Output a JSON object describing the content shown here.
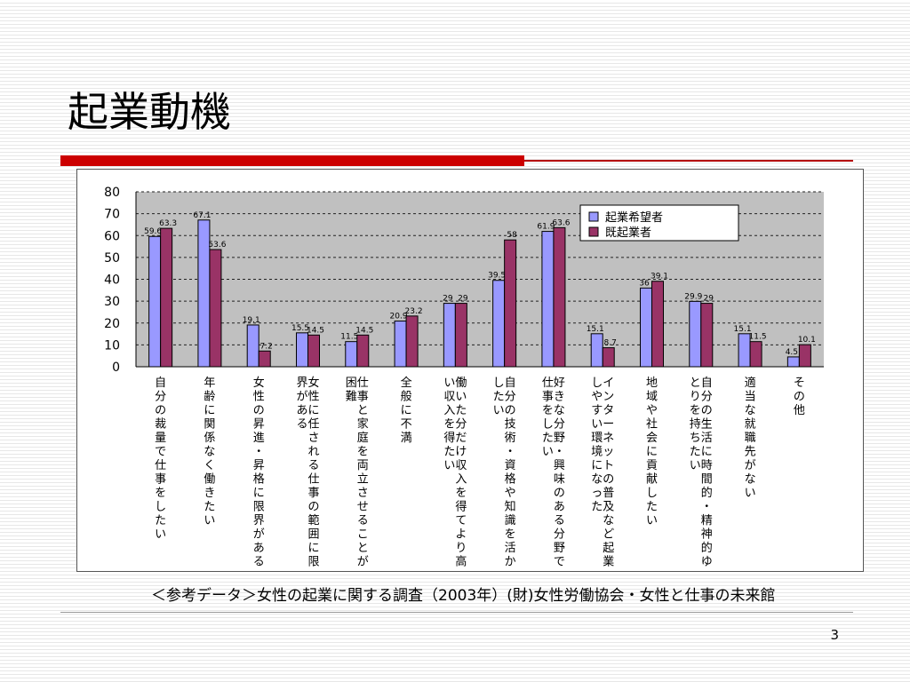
{
  "slide": {
    "title": "起業動機",
    "source_note": "＜参考データ＞女性の起業に関する調査（2003年）(財)女性労働協会・女性と仕事の未来館",
    "page_number": "3"
  },
  "colors": {
    "series1": "#9999ff",
    "series2": "#993366",
    "plot_bg": "#c0c0c0",
    "accent": "#cc0000"
  },
  "chart_data": {
    "type": "bar",
    "title": "",
    "xlabel": "",
    "ylabel": "",
    "ylim": [
      0,
      80
    ],
    "yticks": [
      0,
      10,
      20,
      30,
      40,
      50,
      60,
      70,
      80
    ],
    "grid": true,
    "legend": "top-right",
    "categories": [
      "自分の裁量で仕事をしたい",
      "年齢に関係なく働きたい",
      "女性の昇進・昇格に限界がある",
      "女性に任される仕事の範囲に限界がある",
      "仕事と家庭を両立させることが困難",
      "全般に不満",
      "働いた分だけ収入を得てより高い収入を得たい",
      "自分の技術・資格や知識を活かしたい",
      "好きな分野・興味のある分野で仕事をしたい",
      "インターネットの普及など起業しやすい環境になった",
      "地域や社会に貢献したい",
      "自分の生活に時間的・精神的ゆとりを持ちたい",
      "適当な就職先がない",
      "その他"
    ],
    "series": [
      {
        "name": "起業希望者",
        "values": [
          59.6,
          67.1,
          19.1,
          15.5,
          11.5,
          20.9,
          29.0,
          39.5,
          61.9,
          15.1,
          36.0,
          29.9,
          15.1,
          4.5
        ],
        "labels": [
          "59.6",
          "67.1",
          "19.1",
          "15.5",
          "11.5",
          "20.9",
          "29",
          "39.5",
          "61.9",
          "15.1",
          "36",
          "29.9",
          "15.1",
          "4.5"
        ]
      },
      {
        "name": "既起業者",
        "values": [
          63.3,
          53.6,
          7.2,
          14.5,
          14.5,
          23.2,
          29.0,
          58.0,
          63.6,
          8.7,
          39.1,
          29.0,
          11.5,
          10.1
        ],
        "labels": [
          "63.3",
          "53.6",
          "7.2",
          "14.5",
          "14.5",
          "23.2",
          "29",
          "58",
          "63.6",
          "8.7",
          "39.1",
          "29",
          "11.5",
          "10.1"
        ]
      }
    ]
  }
}
